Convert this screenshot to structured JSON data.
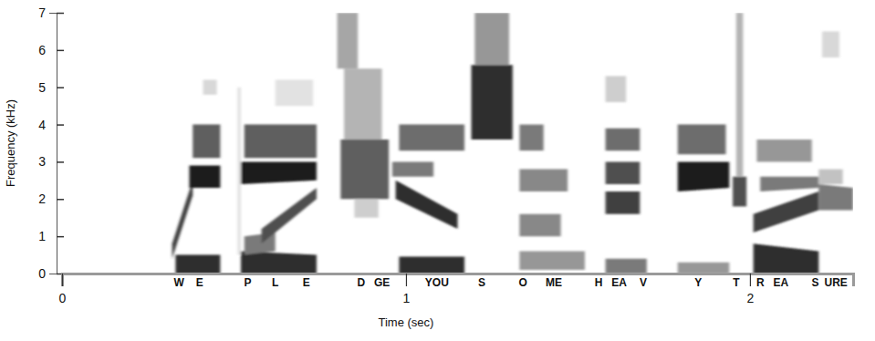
{
  "chart_data": {
    "type": "spectrogram",
    "x_label": "Time (sec)",
    "y_label": "Frequency (kHz)",
    "xlim": [
      0,
      2.3
    ],
    "xticks": [
      0,
      1,
      2
    ],
    "ylim": [
      0,
      7
    ],
    "yticks": [
      0,
      1,
      2,
      3,
      4,
      5,
      6,
      7
    ],
    "annotations": [
      {
        "text": "W",
        "x": 0.34
      },
      {
        "text": "E",
        "x": 0.4
      },
      {
        "text": "P",
        "x": 0.54
      },
      {
        "text": "L",
        "x": 0.62
      },
      {
        "text": "E",
        "x": 0.71
      },
      {
        "text": "D",
        "x": 0.87
      },
      {
        "text": "GE",
        "x": 0.93
      },
      {
        "text": "YOU",
        "x": 1.09
      },
      {
        "text": "S",
        "x": 1.22
      },
      {
        "text": "O",
        "x": 1.34
      },
      {
        "text": "ME",
        "x": 1.43
      },
      {
        "text": "H",
        "x": 1.56
      },
      {
        "text": "EA",
        "x": 1.62
      },
      {
        "text": "V",
        "x": 1.69
      },
      {
        "text": "Y",
        "x": 1.85
      },
      {
        "text": "T",
        "x": 1.96
      },
      {
        "text": "R",
        "x": 2.03
      },
      {
        "text": "EA",
        "x": 2.09
      },
      {
        "text": "S",
        "x": 2.19
      },
      {
        "text": "URE",
        "x": 2.25
      }
    ],
    "bands": [
      {
        "time": [
          0.33,
          0.46
        ],
        "low": [
          0,
          0
        ],
        "high": [
          0.5,
          0.5
        ],
        "level": 0.85
      },
      {
        "time": [
          0.32,
          0.38
        ],
        "low": [
          0.4,
          2.1
        ],
        "high": [
          0.8,
          2.5
        ],
        "level": 0.8
      },
      {
        "time": [
          0.37,
          0.46
        ],
        "low": [
          2.3,
          2.3
        ],
        "high": [
          2.9,
          2.9
        ],
        "level": 0.9
      },
      {
        "time": [
          0.38,
          0.46
        ],
        "low": [
          3.1,
          3.1
        ],
        "high": [
          4.0,
          4.0
        ],
        "level": 0.7
      },
      {
        "time": [
          0.41,
          0.45
        ],
        "low": [
          4.8,
          4.8
        ],
        "high": [
          5.2,
          5.2
        ],
        "level": 0.25
      },
      {
        "time": [
          0.52,
          0.74
        ],
        "low": [
          0,
          0
        ],
        "high": [
          0.6,
          0.5
        ],
        "level": 0.85
      },
      {
        "time": [
          0.53,
          0.62
        ],
        "low": [
          0.5,
          0.6
        ],
        "high": [
          1.0,
          1.1
        ],
        "level": 0.6
      },
      {
        "time": [
          0.58,
          0.74
        ],
        "low": [
          0.8,
          2.0
        ],
        "high": [
          1.2,
          2.3
        ],
        "level": 0.75
      },
      {
        "time": [
          0.52,
          0.74
        ],
        "low": [
          2.4,
          2.5
        ],
        "high": [
          3.0,
          3.0
        ],
        "level": 0.9
      },
      {
        "time": [
          0.53,
          0.74
        ],
        "low": [
          3.1,
          3.1
        ],
        "high": [
          4.0,
          4.0
        ],
        "level": 0.7
      },
      {
        "time": [
          0.62,
          0.73
        ],
        "low": [
          4.5,
          4.5
        ],
        "high": [
          5.2,
          5.2
        ],
        "level": 0.2
      },
      {
        "time": [
          0.51,
          0.52
        ],
        "low": [
          0.5,
          0.5
        ],
        "high": [
          5.0,
          5.0
        ],
        "level": 0.2
      },
      {
        "time": [
          0.81,
          0.95
        ],
        "low": [
          2.0,
          2.0
        ],
        "high": [
          3.6,
          3.6
        ],
        "level": 0.7
      },
      {
        "time": [
          0.82,
          0.93
        ],
        "low": [
          3.6,
          3.6
        ],
        "high": [
          5.5,
          5.5
        ],
        "level": 0.4
      },
      {
        "time": [
          0.8,
          0.86
        ],
        "low": [
          5.5,
          5.5
        ],
        "high": [
          7.0,
          7.0
        ],
        "level": 0.45
      },
      {
        "time": [
          0.85,
          0.92
        ],
        "low": [
          1.5,
          1.5
        ],
        "high": [
          2.0,
          2.0
        ],
        "level": 0.3
      },
      {
        "time": [
          0.98,
          1.17
        ],
        "low": [
          0,
          0
        ],
        "high": [
          0.45,
          0.45
        ],
        "level": 0.85
      },
      {
        "time": [
          0.97,
          1.15
        ],
        "low": [
          2.0,
          1.2
        ],
        "high": [
          2.5,
          1.6
        ],
        "level": 0.85
      },
      {
        "time": [
          0.96,
          1.08
        ],
        "low": [
          2.6,
          2.6
        ],
        "high": [
          3.0,
          3.0
        ],
        "level": 0.6
      },
      {
        "time": [
          0.98,
          1.17
        ],
        "low": [
          3.3,
          3.3
        ],
        "high": [
          4.0,
          4.0
        ],
        "level": 0.65
      },
      {
        "time": [
          1.19,
          1.31
        ],
        "low": [
          3.6,
          3.6
        ],
        "high": [
          5.6,
          5.6
        ],
        "level": 0.85
      },
      {
        "time": [
          1.2,
          1.3
        ],
        "low": [
          5.6,
          5.6
        ],
        "high": [
          7.0,
          7.0
        ],
        "level": 0.5
      },
      {
        "time": [
          1.33,
          1.52
        ],
        "low": [
          0.1,
          0.1
        ],
        "high": [
          0.6,
          0.6
        ],
        "level": 0.5
      },
      {
        "time": [
          1.33,
          1.45
        ],
        "low": [
          1.0,
          1.0
        ],
        "high": [
          1.6,
          1.6
        ],
        "level": 0.55
      },
      {
        "time": [
          1.33,
          1.47
        ],
        "low": [
          2.2,
          2.2
        ],
        "high": [
          2.8,
          2.8
        ],
        "level": 0.55
      },
      {
        "time": [
          1.33,
          1.4
        ],
        "low": [
          3.3,
          3.3
        ],
        "high": [
          4.0,
          4.0
        ],
        "level": 0.6
      },
      {
        "time": [
          1.58,
          1.7
        ],
        "low": [
          0,
          0
        ],
        "high": [
          0.4,
          0.4
        ],
        "level": 0.6
      },
      {
        "time": [
          1.58,
          1.68
        ],
        "low": [
          1.6,
          1.6
        ],
        "high": [
          2.2,
          2.2
        ],
        "level": 0.8
      },
      {
        "time": [
          1.58,
          1.68
        ],
        "low": [
          2.4,
          2.4
        ],
        "high": [
          3.0,
          3.0
        ],
        "level": 0.75
      },
      {
        "time": [
          1.58,
          1.68
        ],
        "low": [
          3.3,
          3.3
        ],
        "high": [
          3.9,
          3.9
        ],
        "level": 0.65
      },
      {
        "time": [
          1.58,
          1.64
        ],
        "low": [
          4.6,
          4.6
        ],
        "high": [
          5.3,
          5.3
        ],
        "level": 0.3
      },
      {
        "time": [
          1.79,
          1.94
        ],
        "low": [
          0,
          0
        ],
        "high": [
          0.3,
          0.3
        ],
        "level": 0.5
      },
      {
        "time": [
          1.79,
          1.94
        ],
        "low": [
          2.2,
          2.3
        ],
        "high": [
          3.0,
          3.0
        ],
        "level": 0.9
      },
      {
        "time": [
          1.79,
          1.93
        ],
        "low": [
          3.2,
          3.2
        ],
        "high": [
          4.0,
          4.0
        ],
        "level": 0.65
      },
      {
        "time": [
          1.95,
          1.99
        ],
        "low": [
          1.8,
          1.8
        ],
        "high": [
          2.6,
          2.6
        ],
        "level": 0.75
      },
      {
        "time": [
          1.96,
          1.98
        ],
        "low": [
          2.6,
          2.6
        ],
        "high": [
          7.0,
          7.0
        ],
        "level": 0.4
      },
      {
        "time": [
          2.01,
          2.2
        ],
        "low": [
          0,
          0
        ],
        "high": [
          0.8,
          0.6
        ],
        "level": 0.85
      },
      {
        "time": [
          2.01,
          2.2
        ],
        "low": [
          1.1,
          1.7
        ],
        "high": [
          1.6,
          2.2
        ],
        "level": 0.8
      },
      {
        "time": [
          2.03,
          2.2
        ],
        "low": [
          2.2,
          2.3
        ],
        "high": [
          2.6,
          2.6
        ],
        "level": 0.6
      },
      {
        "time": [
          2.02,
          2.18
        ],
        "low": [
          3.0,
          3.0
        ],
        "high": [
          3.6,
          3.6
        ],
        "level": 0.5
      },
      {
        "time": [
          2.2,
          2.3
        ],
        "low": [
          1.7,
          1.7
        ],
        "high": [
          2.4,
          2.3
        ],
        "level": 0.6
      },
      {
        "time": [
          2.2,
          2.27
        ],
        "low": [
          2.4,
          2.4
        ],
        "high": [
          2.8,
          2.8
        ],
        "level": 0.35
      },
      {
        "time": [
          2.21,
          2.26
        ],
        "low": [
          5.8,
          5.8
        ],
        "high": [
          6.5,
          6.5
        ],
        "level": 0.25
      }
    ]
  }
}
